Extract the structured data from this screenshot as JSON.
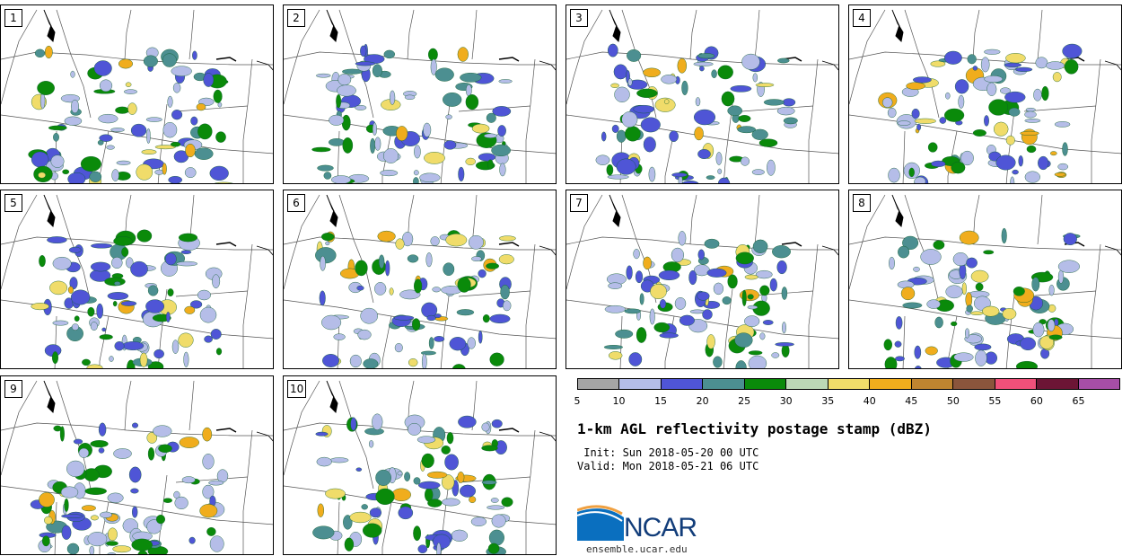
{
  "panels": [
    {
      "label": "1"
    },
    {
      "label": "2"
    },
    {
      "label": "3"
    },
    {
      "label": "4"
    },
    {
      "label": "5"
    },
    {
      "label": "6"
    },
    {
      "label": "7"
    },
    {
      "label": "8"
    },
    {
      "label": "9"
    },
    {
      "label": "10"
    }
  ],
  "colorbar": {
    "ticks": [
      "5",
      "10",
      "15",
      "20",
      "25",
      "30",
      "35",
      "40",
      "45",
      "50",
      "55",
      "60",
      "65"
    ],
    "colors": [
      "#a5a5a5",
      "#b5bde8",
      "#4f55d6",
      "#4c8f91",
      "#0a8a0a",
      "#bcd8b6",
      "#f0dc6a",
      "#f0ad1d",
      "#bf8530",
      "#8a553c",
      "#f0507a",
      "#6c1535",
      "#a64ea6"
    ]
  },
  "title": "1-km AGL reflectivity postage stamp (dBZ)",
  "init": " Init: Sun 2018-05-20 00 UTC",
  "valid": "Valid: Mon 2018-05-21 06 UTC",
  "logo": {
    "name": "NCAR",
    "url": "ensemble.ucar.edu"
  },
  "map_legend_name": "reflectivity"
}
